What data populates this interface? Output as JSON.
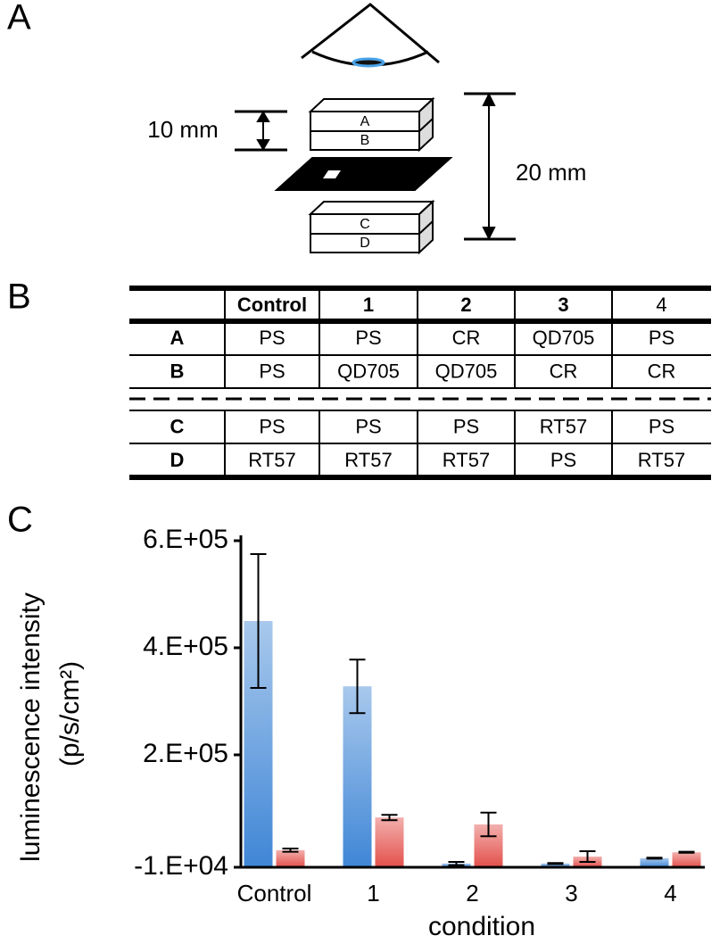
{
  "panel_labels": [
    "A",
    "B",
    "C"
  ],
  "diagram": {
    "layers": [
      "A",
      "B",
      "C",
      "D"
    ],
    "gap_label": "10 mm",
    "total_label": "20 mm"
  },
  "table": {
    "columns": [
      "Control",
      "1",
      "2",
      "3",
      "4"
    ],
    "header_bold": [
      true,
      true,
      true,
      true,
      false
    ],
    "rows": [
      {
        "label": "A",
        "cells": [
          "PS",
          "PS",
          "CR",
          "QD705",
          "PS"
        ]
      },
      {
        "label": "B",
        "cells": [
          "PS",
          "QD705",
          "QD705",
          "CR",
          "CR"
        ]
      },
      {
        "label": "C",
        "cells": [
          "PS",
          "PS",
          "PS",
          "RT57",
          "PS"
        ]
      },
      {
        "label": "D",
        "cells": [
          "RT57",
          "RT57",
          "RT57",
          "PS",
          "RT57"
        ]
      }
    ]
  },
  "chart_data": {
    "type": "bar",
    "categories": [
      "Control",
      "1",
      "2",
      "3",
      "4"
    ],
    "series": [
      {
        "color": "#3f86d6",
        "values": [
          450000,
          328000,
          -3000,
          -3000,
          7000
        ],
        "errors": [
          125000,
          50000,
          3000,
          1000,
          1000
        ]
      },
      {
        "color": "#e3504b",
        "values": [
          22000,
          83000,
          70000,
          10000,
          18000
        ],
        "errors": [
          3000,
          5000,
          22000,
          10000,
          1000
        ]
      }
    ],
    "ylim": [
      -10000,
      610000
    ],
    "yticks": [
      {
        "value": -10000,
        "label": "-1.E+04"
      },
      {
        "value": 200000,
        "label": "2.E+05"
      },
      {
        "value": 400000,
        "label": "4.E+05"
      },
      {
        "value": 600000,
        "label": "6.E+05"
      }
    ],
    "ylabel": [
      "luminescence intensity",
      "(p/s/cm²)"
    ],
    "xlabel": "condition"
  }
}
